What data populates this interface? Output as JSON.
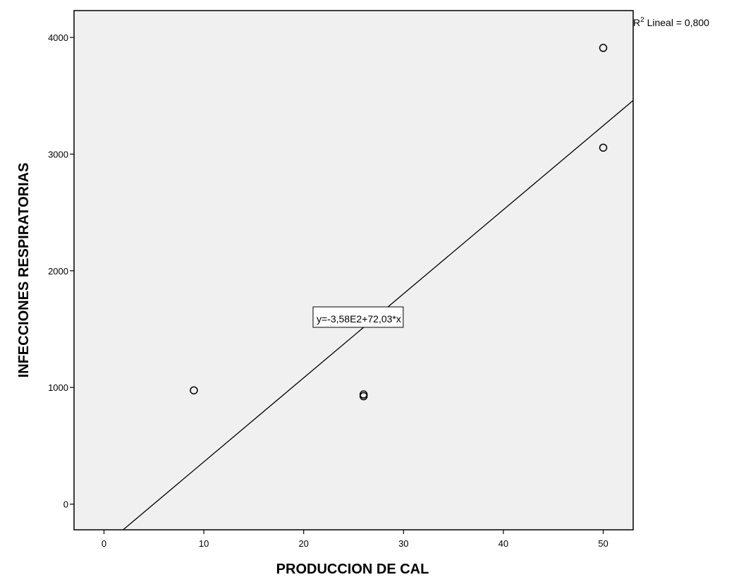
{
  "chart_data": {
    "type": "scatter",
    "title": "",
    "xlabel": "PRODUCCION DE CAL",
    "ylabel": "INFECCIONES RESPIRATORIAS",
    "xlim": [
      -3,
      53
    ],
    "ylim": [
      -220,
      4230
    ],
    "x_ticks": [
      0,
      10,
      20,
      30,
      40,
      50
    ],
    "y_ticks": [
      0,
      1000,
      2000,
      3000,
      4000
    ],
    "grid": false,
    "points": [
      {
        "x": 9,
        "y": 975
      },
      {
        "x": 26,
        "y": 940
      },
      {
        "x": 26,
        "y": 925
      },
      {
        "x": 50,
        "y": 3910
      },
      {
        "x": 50,
        "y": 3055
      }
    ],
    "fit_line": {
      "intercept": -358,
      "slope": 72.03
    },
    "equation_label": "y=-3,58E2+72,03*x",
    "r2_label": {
      "prefix": "R",
      "superscript": "2",
      "text": " Lineal = 0,800"
    },
    "colors": {
      "plot_background": "#f0f0f0",
      "frame": "#000000",
      "marker": "#000000",
      "line": "#000000"
    }
  }
}
